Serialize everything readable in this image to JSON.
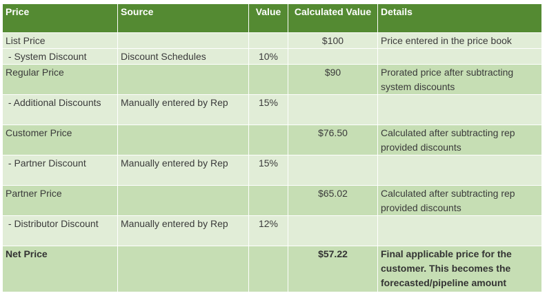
{
  "table": {
    "headers": {
      "price": "Price",
      "source": "Source",
      "value": "Value",
      "calculated_value": "Calculated Value",
      "details": "Details"
    },
    "rows": [
      {
        "price": "List Price",
        "source": "",
        "value": "",
        "calculated": "$100",
        "details": "Price entered in the price book"
      },
      {
        "price": " - System Discount",
        "source": "Discount Schedules",
        "value": "10%",
        "calculated": "",
        "details": ""
      },
      {
        "price": "Regular Price",
        "source": "",
        "value": "",
        "calculated": "$90",
        "details": "Prorated price after subtracting system discounts"
      },
      {
        "price": " - Additional Discounts",
        "source": "Manually entered by Rep",
        "value": "15%",
        "calculated": "",
        "details": ""
      },
      {
        "price": "Customer Price",
        "source": "",
        "value": "",
        "calculated": "$76.50",
        "details": "Calculated after subtracting rep provided discounts"
      },
      {
        "price": " - Partner Discount",
        "source": "Manually entered by Rep",
        "value": "15%",
        "calculated": "",
        "details": ""
      },
      {
        "price": "Partner Price",
        "source": "",
        "value": "",
        "calculated": "$65.02",
        "details": "Calculated after subtracting rep provided discounts"
      },
      {
        "price": " - Distributor Discount",
        "source": "Manually entered by Rep",
        "value": "12%",
        "calculated": "",
        "details": ""
      },
      {
        "price": "Net Price",
        "source": "",
        "value": "",
        "calculated": "$57.22",
        "details": "Final applicable price for the customer. This becomes the forecasted/pipeline amount"
      }
    ]
  },
  "colors": {
    "header_bg": "#548a32",
    "row_dark": "#c6deb4",
    "row_light": "#e1edd7"
  }
}
